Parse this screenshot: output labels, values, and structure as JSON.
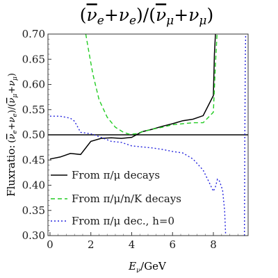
{
  "chart_data": {
    "type": "line",
    "title": "(ν̄e+νe)/(ν̄μ+νμ)",
    "title_parts": {
      "open": "(",
      "nu1": "ν",
      "sub1": "e",
      "plus1": "+",
      "nu2": "ν",
      "sub2": "e",
      "close_div_open": ")/(",
      "nu3": "ν",
      "sub3": "μ",
      "plus2": "+",
      "nu4": "ν",
      "sub4": "μ",
      "close": ")"
    },
    "xlabel": "Eν/GeV",
    "xlabel_parts": {
      "e": "E",
      "sub": "ν",
      "unit": "/GeV"
    },
    "ylabel": "Fluxratio: (ν̄e+νe)/(ν̄μ+νμ)",
    "ylabel_parts": {
      "prefix": "Fluxratio:",
      "open": "(",
      "nu1": "ν",
      "sub1": "e",
      "plus1": "+",
      "nu2": "ν",
      "sub2": "e",
      "mid": ")/(",
      "nu3": "ν",
      "sub3": "μ",
      "plus2": "+",
      "nu4": "ν",
      "sub4": "μ",
      "close": ")"
    },
    "xlim": [
      -0.1,
      9.7
    ],
    "ylim": [
      0.3,
      0.7
    ],
    "xticks": [
      0,
      2,
      4,
      6,
      8
    ],
    "yticks": [
      0.3,
      0.35,
      0.4,
      0.45,
      0.5,
      0.55,
      0.6,
      0.65,
      0.7
    ],
    "ytick_labels": [
      "0.30",
      "0.35",
      "0.40",
      "0.45",
      "0.50",
      "0.55",
      "0.60",
      "0.65",
      "0.70"
    ],
    "reference_line": {
      "y": 0.5,
      "color": "#000000"
    },
    "legend_position": "bottom-left",
    "series": [
      {
        "name": "From π/μ decays",
        "color": "#000000",
        "dash": "solid",
        "x": [
          0.0,
          0.5,
          1.0,
          1.5,
          2.0,
          2.5,
          3.0,
          3.5,
          4.0,
          4.5,
          5.0,
          5.5,
          6.0,
          6.5,
          7.0,
          7.5,
          8.0,
          8.05,
          8.1
        ],
        "y": [
          0.452,
          0.456,
          0.463,
          0.461,
          0.487,
          0.493,
          0.494,
          0.493,
          0.495,
          0.506,
          0.511,
          0.517,
          0.522,
          0.528,
          0.531,
          0.538,
          0.578,
          0.66,
          0.7
        ]
      },
      {
        "name": "From π/μ/n/K decays",
        "color": "#22cc22",
        "dash": "dashed",
        "x": [
          1.75,
          1.9,
          2.1,
          2.4,
          2.8,
          3.2,
          3.6,
          3.9,
          4.2,
          4.6,
          5.0,
          5.5,
          6.0,
          6.5,
          7.0,
          7.5,
          8.0,
          8.1,
          8.18
        ],
        "y": [
          0.7,
          0.665,
          0.62,
          0.57,
          0.535,
          0.515,
          0.505,
          0.501,
          0.502,
          0.507,
          0.511,
          0.515,
          0.52,
          0.522,
          0.524,
          0.524,
          0.545,
          0.64,
          0.7
        ]
      },
      {
        "name": "From π/μ dec., h=0",
        "color": "#2222dd",
        "dash": "dotted",
        "x": [
          0.0,
          0.5,
          1.0,
          1.2,
          1.5,
          2.0,
          2.5,
          3.0,
          3.5,
          4.0,
          4.5,
          5.0,
          5.5,
          6.0,
          6.5,
          7.0,
          7.5,
          7.8,
          8.0,
          8.1,
          8.2,
          8.3,
          8.45,
          8.55,
          8.6
        ],
        "y": [
          0.537,
          0.537,
          0.533,
          0.527,
          0.505,
          0.502,
          0.495,
          0.487,
          0.485,
          0.478,
          0.476,
          0.474,
          0.471,
          0.467,
          0.464,
          0.452,
          0.43,
          0.405,
          0.388,
          0.397,
          0.412,
          0.408,
          0.39,
          0.35,
          0.3
        ]
      },
      {
        "name": "",
        "color": "#2222dd",
        "dash": "dotted",
        "x": [
          9.52,
          9.54,
          9.56,
          9.58
        ],
        "y": [
          0.3,
          0.5,
          0.64,
          0.7
        ]
      }
    ],
    "legend": [
      {
        "label": "From π/μ decays",
        "color": "#000000",
        "dash": "solid"
      },
      {
        "label": "From π/μ/n/K decays",
        "color": "#22cc22",
        "dash": "dashed"
      },
      {
        "label": "From π/μ dec., h=0",
        "color": "#2222dd",
        "dash": "dotted"
      }
    ]
  }
}
